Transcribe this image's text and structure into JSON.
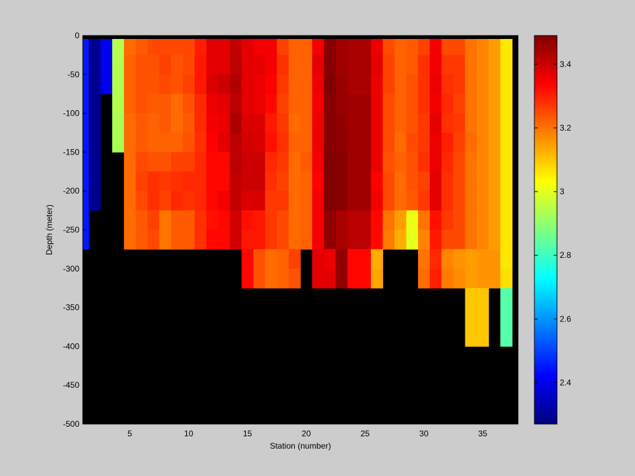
{
  "chart_data": {
    "type": "heatmap",
    "title": "",
    "xlabel": "Station (number)",
    "ylabel": "Depth (meter)",
    "xlim": [
      1,
      38
    ],
    "ylim": [
      -500,
      0
    ],
    "x_ticks": [
      5,
      10,
      15,
      20,
      25,
      30,
      35
    ],
    "y_ticks": [
      0,
      -50,
      -100,
      -150,
      -200,
      -250,
      -300,
      -350,
      -400,
      -450,
      -500
    ],
    "colormap": "jet",
    "clim": [
      2.27,
      3.49
    ],
    "colorbar_ticks": [
      2.4,
      2.6,
      2.8,
      3,
      3.2,
      3.4
    ],
    "missing_color": "#000000",
    "background_color": "#cccccc",
    "stations": [
      1,
      2,
      3,
      4,
      5,
      6,
      7,
      8,
      9,
      10,
      11,
      12,
      13,
      14,
      15,
      16,
      17,
      18,
      19,
      20,
      21,
      22,
      23,
      24,
      25,
      26,
      27,
      28,
      29,
      30,
      31,
      32,
      33,
      34,
      35,
      36,
      37,
      38
    ],
    "depths": [
      0,
      -25,
      -50,
      -75,
      -100,
      -125,
      -150,
      -175,
      -200,
      -225,
      -250,
      -275,
      -300,
      -325,
      -350,
      -375,
      -400,
      -425,
      -450,
      -475,
      -500
    ],
    "surface_row_color": "#000000",
    "values": [
      [
        2.45,
        2.29,
        2.4,
        2.94,
        3.21,
        3.23,
        3.25,
        3.25,
        3.25,
        3.25,
        3.3,
        3.37,
        3.37,
        3.41,
        3.37,
        3.35,
        3.35,
        3.26,
        3.22,
        3.22,
        3.35,
        3.48,
        3.45,
        3.44,
        3.44,
        3.36,
        3.25,
        3.22,
        3.23,
        3.26,
        3.35,
        3.25,
        3.25,
        3.2,
        3.18,
        3.15,
        3.06,
        null
      ],
      [
        2.45,
        2.29,
        2.4,
        2.94,
        3.22,
        3.24,
        3.24,
        3.26,
        3.24,
        3.25,
        3.31,
        3.37,
        3.37,
        3.42,
        3.37,
        3.37,
        3.35,
        3.28,
        3.22,
        3.22,
        3.37,
        3.48,
        3.45,
        3.44,
        3.44,
        3.37,
        3.26,
        3.22,
        3.23,
        3.28,
        3.35,
        3.27,
        3.27,
        3.2,
        3.18,
        3.15,
        3.06,
        null
      ],
      [
        2.45,
        2.29,
        2.4,
        2.94,
        3.22,
        3.24,
        3.24,
        3.25,
        3.24,
        3.26,
        3.31,
        3.38,
        3.4,
        3.43,
        3.37,
        3.36,
        3.34,
        3.27,
        3.22,
        3.22,
        3.36,
        3.49,
        3.46,
        3.44,
        3.44,
        3.36,
        3.26,
        3.22,
        3.24,
        3.28,
        3.36,
        3.28,
        3.27,
        3.2,
        3.18,
        3.15,
        3.06,
        null
      ],
      [
        2.45,
        2.29,
        null,
        2.94,
        3.22,
        3.24,
        3.23,
        3.23,
        3.21,
        3.24,
        3.29,
        3.36,
        3.37,
        3.42,
        3.37,
        3.36,
        3.33,
        3.26,
        3.22,
        3.22,
        3.35,
        3.48,
        3.46,
        3.45,
        3.45,
        3.36,
        3.25,
        3.22,
        3.24,
        3.28,
        3.35,
        3.29,
        3.26,
        3.2,
        3.18,
        3.15,
        3.06,
        null
      ],
      [
        2.45,
        2.29,
        null,
        2.93,
        3.21,
        3.23,
        3.22,
        3.23,
        3.21,
        3.23,
        3.29,
        3.35,
        3.36,
        3.44,
        3.38,
        3.38,
        3.31,
        3.27,
        3.21,
        3.22,
        3.36,
        3.48,
        3.47,
        3.45,
        3.45,
        3.36,
        3.25,
        3.22,
        3.24,
        3.27,
        3.37,
        3.28,
        3.27,
        3.2,
        3.18,
        3.15,
        3.06,
        null
      ],
      [
        2.45,
        2.29,
        null,
        2.93,
        3.21,
        3.23,
        3.22,
        3.22,
        3.22,
        3.24,
        3.28,
        3.34,
        3.37,
        3.42,
        3.39,
        3.38,
        3.32,
        3.28,
        3.22,
        3.22,
        3.36,
        3.48,
        3.47,
        3.45,
        3.45,
        3.36,
        3.25,
        3.21,
        3.25,
        3.27,
        3.36,
        3.3,
        3.26,
        3.21,
        3.18,
        3.15,
        3.06,
        null
      ],
      [
        2.45,
        2.29,
        null,
        null,
        3.21,
        3.25,
        3.24,
        3.24,
        3.26,
        3.26,
        3.29,
        3.33,
        3.33,
        3.42,
        3.4,
        3.4,
        3.29,
        3.27,
        3.21,
        3.23,
        3.35,
        3.49,
        3.48,
        3.45,
        3.45,
        3.36,
        3.24,
        3.22,
        3.24,
        3.28,
        3.36,
        3.29,
        3.25,
        3.2,
        3.18,
        3.15,
        3.06,
        null
      ],
      [
        2.45,
        2.29,
        null,
        null,
        3.21,
        3.26,
        3.28,
        3.27,
        3.28,
        3.29,
        3.29,
        3.33,
        3.33,
        3.41,
        3.4,
        3.4,
        3.28,
        3.26,
        3.21,
        3.22,
        3.34,
        3.49,
        3.48,
        3.45,
        3.45,
        3.34,
        3.25,
        3.21,
        3.24,
        3.26,
        3.37,
        3.28,
        3.25,
        3.2,
        3.18,
        3.15,
        3.06,
        null
      ],
      [
        2.45,
        2.29,
        null,
        null,
        3.21,
        3.25,
        3.28,
        3.26,
        3.29,
        3.28,
        3.29,
        3.33,
        3.35,
        3.41,
        3.38,
        3.38,
        3.27,
        3.27,
        3.21,
        3.22,
        3.35,
        3.49,
        3.48,
        3.45,
        3.45,
        3.35,
        3.25,
        3.21,
        3.23,
        3.27,
        3.37,
        3.28,
        3.25,
        3.2,
        3.18,
        3.15,
        3.06,
        null
      ],
      [
        2.45,
        null,
        null,
        null,
        3.21,
        3.23,
        3.26,
        3.2,
        3.23,
        3.23,
        3.28,
        3.32,
        3.33,
        3.39,
        3.32,
        3.31,
        3.27,
        3.25,
        3.21,
        3.22,
        3.35,
        3.47,
        3.44,
        3.42,
        3.42,
        3.33,
        3.2,
        3.15,
        3.01,
        3.2,
        3.32,
        3.27,
        3.25,
        3.2,
        3.18,
        3.15,
        3.06,
        null
      ],
      [
        2.45,
        null,
        null,
        null,
        3.21,
        3.23,
        3.25,
        3.2,
        3.23,
        3.23,
        3.28,
        3.33,
        3.33,
        3.39,
        3.31,
        3.31,
        3.27,
        3.25,
        3.21,
        3.22,
        3.35,
        3.47,
        3.44,
        3.42,
        3.42,
        3.33,
        3.19,
        3.13,
        3.0,
        3.18,
        3.31,
        3.25,
        3.25,
        3.2,
        3.18,
        3.15,
        3.06,
        null
      ],
      [
        null,
        null,
        null,
        null,
        null,
        null,
        null,
        null,
        null,
        null,
        null,
        null,
        null,
        null,
        3.33,
        3.24,
        3.21,
        3.22,
        3.26,
        null,
        3.37,
        3.36,
        3.47,
        3.33,
        3.33,
        3.13,
        null,
        null,
        null,
        3.2,
        3.29,
        3.18,
        3.16,
        3.15,
        3.16,
        3.16,
        3.06,
        null
      ],
      [
        null,
        null,
        null,
        null,
        null,
        null,
        null,
        null,
        null,
        null,
        null,
        null,
        null,
        null,
        3.33,
        3.24,
        3.21,
        3.22,
        3.24,
        null,
        3.37,
        3.37,
        3.47,
        3.33,
        3.33,
        3.14,
        null,
        null,
        null,
        3.21,
        3.3,
        3.19,
        3.17,
        3.15,
        3.16,
        3.16,
        3.07,
        null
      ],
      [
        null,
        null,
        null,
        null,
        null,
        null,
        null,
        null,
        null,
        null,
        null,
        null,
        null,
        null,
        null,
        null,
        null,
        null,
        null,
        null,
        null,
        null,
        null,
        null,
        null,
        null,
        null,
        null,
        null,
        null,
        null,
        null,
        null,
        3.1,
        3.1,
        null,
        2.83,
        null
      ],
      [
        null,
        null,
        null,
        null,
        null,
        null,
        null,
        null,
        null,
        null,
        null,
        null,
        null,
        null,
        null,
        null,
        null,
        null,
        null,
        null,
        null,
        null,
        null,
        null,
        null,
        null,
        null,
        null,
        null,
        null,
        null,
        null,
        null,
        3.1,
        3.1,
        null,
        2.83,
        null
      ],
      [
        null,
        null,
        null,
        null,
        null,
        null,
        null,
        null,
        null,
        null,
        null,
        null,
        null,
        null,
        null,
        null,
        null,
        null,
        null,
        null,
        null,
        null,
        null,
        null,
        null,
        null,
        null,
        null,
        null,
        null,
        null,
        null,
        null,
        3.1,
        3.1,
        null,
        2.83,
        null
      ],
      [
        null,
        null,
        null,
        null,
        null,
        null,
        null,
        null,
        null,
        null,
        null,
        null,
        null,
        null,
        null,
        null,
        null,
        null,
        null,
        null,
        null,
        null,
        null,
        null,
        null,
        null,
        null,
        null,
        null,
        null,
        null,
        null,
        null,
        null,
        null,
        null,
        null,
        null
      ],
      [
        null,
        null,
        null,
        null,
        null,
        null,
        null,
        null,
        null,
        null,
        null,
        null,
        null,
        null,
        null,
        null,
        null,
        null,
        null,
        null,
        null,
        null,
        null,
        null,
        null,
        null,
        null,
        null,
        null,
        null,
        null,
        null,
        null,
        null,
        null,
        null,
        null,
        null
      ],
      [
        null,
        null,
        null,
        null,
        null,
        null,
        null,
        null,
        null,
        null,
        null,
        null,
        null,
        null,
        null,
        null,
        null,
        null,
        null,
        null,
        null,
        null,
        null,
        null,
        null,
        null,
        null,
        null,
        null,
        null,
        null,
        null,
        null,
        null,
        null,
        null,
        null,
        null
      ],
      [
        null,
        null,
        null,
        null,
        null,
        null,
        null,
        null,
        null,
        null,
        null,
        null,
        null,
        null,
        null,
        null,
        null,
        null,
        null,
        null,
        null,
        null,
        null,
        null,
        null,
        null,
        null,
        null,
        null,
        null,
        null,
        null,
        null,
        null,
        null,
        null,
        null,
        null
      ]
    ]
  }
}
